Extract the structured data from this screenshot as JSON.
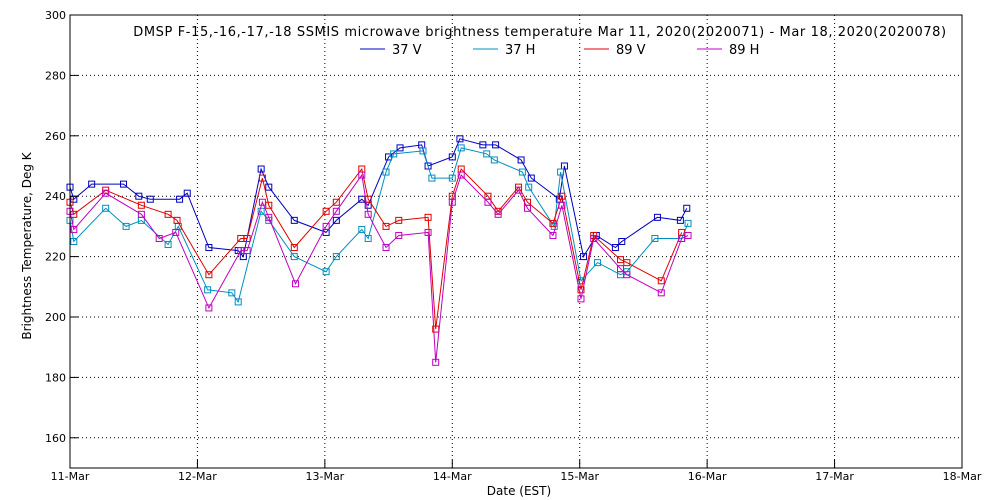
{
  "chart_data": {
    "type": "line",
    "title": "DMSP F-15,-16,-17,-18 SSMIS microwave brightness temperature Mar 11, 2020(2020071) - Mar 18, 2020(2020078)",
    "xlabel": "Date (EST)",
    "ylabel": "Brightness Temperature, Deg K",
    "xlim": [
      "11-Mar",
      "18-Mar"
    ],
    "ylim": [
      150,
      300
    ],
    "x_ticks": [
      "11-Mar",
      "12-Mar",
      "13-Mar",
      "14-Mar",
      "15-Mar",
      "16-Mar",
      "17-Mar",
      "18-Mar"
    ],
    "y_ticks": [
      160,
      180,
      200,
      220,
      240,
      260,
      280,
      300
    ],
    "grid": true,
    "legend": "top-center",
    "marker": "square",
    "series": [
      {
        "name": "37 V",
        "color": "#0000c0",
        "x": [
          11.0,
          11.03,
          11.17,
          11.42,
          11.54,
          11.63,
          11.86,
          11.92,
          12.09,
          12.32,
          12.36,
          12.5,
          12.56,
          12.76,
          13.01,
          13.09,
          13.29,
          13.34,
          13.5,
          13.59,
          13.76,
          13.81,
          14.0,
          14.06,
          14.24,
          14.34,
          14.54,
          14.62,
          14.84,
          14.88,
          15.03,
          15.13,
          15.28,
          15.33,
          15.61,
          15.79,
          15.84
        ],
        "y": [
          243,
          239,
          244,
          244,
          240,
          239,
          239,
          241,
          223,
          222,
          220,
          249,
          243,
          232,
          228,
          232,
          239,
          237,
          253,
          256,
          257,
          250,
          253,
          259,
          257,
          257,
          252,
          246,
          239,
          250,
          220,
          227,
          223,
          225,
          233,
          232,
          236
        ]
      },
      {
        "name": "37 H",
        "color": "#0090c0",
        "x": [
          11.0,
          11.03,
          11.28,
          11.44,
          11.56,
          11.77,
          11.85,
          12.08,
          12.27,
          12.32,
          12.5,
          12.56,
          12.76,
          13.01,
          13.09,
          13.29,
          13.34,
          13.48,
          13.54,
          13.77,
          13.84,
          14.0,
          14.07,
          14.27,
          14.33,
          14.55,
          14.6,
          14.8,
          14.85,
          15.01,
          15.14,
          15.32,
          15.37,
          15.59,
          15.8,
          15.85
        ],
        "y": [
          232,
          225,
          236,
          230,
          232,
          224,
          230,
          209,
          208,
          205,
          235,
          232,
          220,
          215,
          220,
          229,
          226,
          248,
          254,
          255,
          246,
          246,
          256,
          254,
          252,
          248,
          243,
          230,
          248,
          212,
          218,
          214,
          215,
          226,
          226,
          231
        ]
      },
      {
        "name": "89 V",
        "color": "#e00000",
        "x": [
          11.0,
          11.03,
          11.28,
          11.56,
          11.77,
          11.84,
          12.09,
          12.34,
          12.39,
          12.51,
          12.56,
          12.76,
          13.01,
          13.09,
          13.29,
          13.34,
          13.48,
          13.58,
          13.81,
          13.87,
          14.0,
          14.07,
          14.28,
          14.36,
          14.52,
          14.59,
          14.79,
          14.86,
          15.01,
          15.11,
          15.32,
          15.37,
          15.64,
          15.8
        ],
        "y": [
          238,
          234,
          242,
          237,
          234,
          232,
          214,
          226,
          226,
          246,
          237,
          223,
          235,
          238,
          249,
          239,
          230,
          232,
          233,
          196,
          240,
          249,
          240,
          235,
          243,
          238,
          231,
          240,
          209,
          227,
          219,
          218,
          212,
          228
        ]
      },
      {
        "name": "89 H",
        "color": "#c000c0",
        "x": [
          11.0,
          11.03,
          11.28,
          11.56,
          11.7,
          11.83,
          12.09,
          12.34,
          12.39,
          12.51,
          12.56,
          12.77,
          13.01,
          13.09,
          13.29,
          13.34,
          13.48,
          13.58,
          13.81,
          13.87,
          14.0,
          14.07,
          14.28,
          14.36,
          14.52,
          14.59,
          14.79,
          14.86,
          15.01,
          15.11,
          15.32,
          15.37,
          15.64,
          15.8,
          15.85
        ],
        "y": [
          235,
          229,
          241,
          234,
          226,
          228,
          203,
          222,
          222,
          238,
          233,
          211,
          230,
          235,
          247,
          234,
          223,
          227,
          228,
          185,
          238,
          247,
          238,
          234,
          242,
          236,
          227,
          237,
          206,
          226,
          216,
          214,
          208,
          226,
          227
        ]
      }
    ]
  }
}
